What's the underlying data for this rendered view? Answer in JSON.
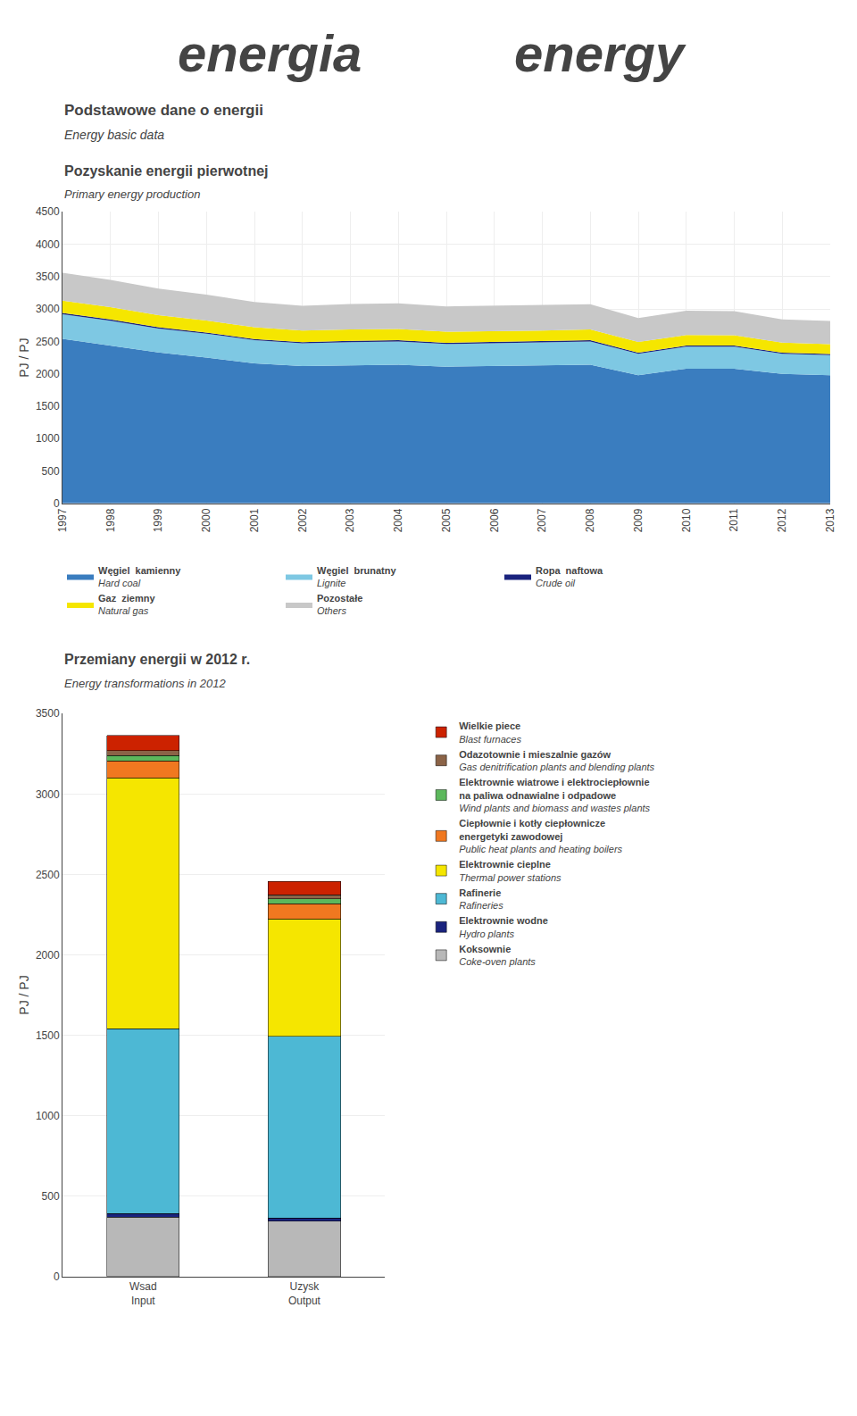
{
  "chart_data": [
    {
      "type": "area",
      "title": "Pozyskanie energii pierwotnej",
      "subtitle": "Primary energy production",
      "annotations": [
        "energia",
        "energy",
        "Podstawowe dane o energii",
        "Energy basic data"
      ],
      "ylabel": "PJ / PJ",
      "x": [
        1997,
        1998,
        1999,
        2000,
        2001,
        2002,
        2003,
        2004,
        2005,
        2006,
        2007,
        2008,
        2009,
        2010,
        2011,
        2012,
        2013
      ],
      "series": [
        {
          "name": "Węgiel  kamienny\nHard coal",
          "color": "#3a7dbf",
          "values": [
            2540,
            2430,
            2330,
            2250,
            2160,
            2120,
            2130,
            2140,
            2110,
            2120,
            2120,
            2140,
            1980,
            2080,
            2080,
            2000,
            1980
          ]
        },
        {
          "name": "Węgiel  brunatny\nLignite",
          "color": "#7ec8e3",
          "values": [
            380,
            390,
            370,
            370,
            360,
            350,
            360,
            360,
            350,
            350,
            360,
            360,
            330,
            340,
            340,
            310,
            310
          ]
        },
        {
          "name": "Ropa  naftowa\nCrude oil",
          "color": "#1a237e",
          "values": [
            20,
            20,
            20,
            18,
            18,
            18,
            18,
            18,
            18,
            18,
            18,
            18,
            16,
            16,
            16,
            15,
            15
          ]
        },
        {
          "name": "Gaz  ziemny\nNatural gas",
          "color": "#f5e600",
          "values": [
            190,
            190,
            185,
            185,
            180,
            178,
            178,
            175,
            172,
            170,
            170,
            168,
            165,
            162,
            160,
            155,
            153
          ]
        },
        {
          "name": "Pozostałe\nOthers",
          "color": "#c8c8c8",
          "values": [
            430,
            420,
            410,
            400,
            390,
            385,
            390,
            395,
            390,
            392,
            390,
            388,
            370,
            375,
            370,
            360,
            358
          ]
        }
      ],
      "xlim": [
        1997,
        2013
      ],
      "xticks": [
        1997,
        1998,
        1999,
        2000,
        2001,
        2002,
        2003,
        2004,
        2005,
        2006,
        2007,
        2008,
        2009,
        2010,
        2011,
        2012,
        2013
      ],
      "ylim": [
        0,
        4500
      ],
      "yticks": [
        0,
        500,
        1000,
        1500,
        2000,
        2500,
        3000,
        3500,
        4000,
        4500
      ],
      "stacked": true,
      "grid": true
    },
    {
      "type": "bar",
      "title": "Przemiany energii w 2012 r.",
      "subtitle": "Energy transformations in 2012",
      "ylabel": "PJ / PJ",
      "categories": [
        "Wsad\nInput",
        "Uzysk\nOutput"
      ],
      "series": [
        {
          "name": "Koksownie\nCoke-oven plants",
          "color": "#b8b8b8",
          "values": [
            370,
            345
          ]
        },
        {
          "name": "Elektrownie wodne\nHydro plants",
          "color": "#1a237e",
          "values": [
            20,
            18
          ]
        },
        {
          "name": "Rafinerie\nRafineries",
          "color": "#4db8d4",
          "values": [
            1150,
            1130
          ]
        },
        {
          "name": "Elektrownie cieplne\nThermal power stations",
          "color": "#f5e600",
          "values": [
            1560,
            730
          ]
        },
        {
          "name": "Ciepłownie i kotły ciepłownicze\nenergetyki zawodowej\nPublic heat plants and heating boilers",
          "color": "#f07820",
          "values": [
            105,
            95
          ]
        },
        {
          "name": "Elektrownie wiatrowe i elektrociepłownie\nna paliwa odnawialne i odpadowe\nWind plants and biomass and wastes plants",
          "color": "#5cb85c",
          "values": [
            35,
            30
          ]
        },
        {
          "name": "Odazotownie i mieszalnie gazów\nGas denitrification plants and blending plants",
          "color": "#8b6347",
          "values": [
            30,
            25
          ]
        },
        {
          "name": "Wielkie piece\nBlast furnaces",
          "color": "#cc2200",
          "values": [
            95,
            82
          ]
        }
      ],
      "ylim": [
        0,
        3500
      ],
      "yticks": [
        0,
        500,
        1000,
        1500,
        2000,
        2500,
        3000,
        3500
      ],
      "stacked": true,
      "grid": "y"
    }
  ]
}
